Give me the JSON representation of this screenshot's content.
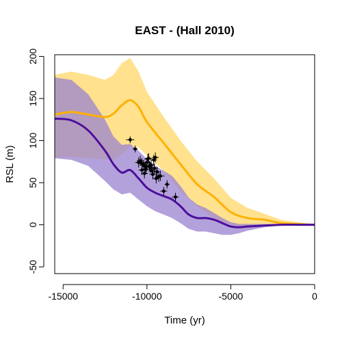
{
  "chart_data": {
    "type": "area",
    "title": "EAST - (Hall 2010)",
    "xlabel": "Time (yr)",
    "ylabel": "RSL (m)",
    "xlim": [
      -15500,
      0
    ],
    "ylim": [
      -58,
      202
    ],
    "xticks": [
      -15000,
      -10000,
      -5000,
      0
    ],
    "xtick_labels": [
      "-15000",
      "-10000",
      "-5000",
      "0"
    ],
    "yticks": [
      -50,
      0,
      50,
      100,
      150,
      200
    ],
    "ytick_labels": [
      "-50",
      "0",
      "50",
      "100",
      "150",
      "200"
    ],
    "grid": false,
    "legend": "none",
    "series": [
      {
        "color": "#ffb000",
        "band_color": "#ffdf88",
        "x": [
          -15500,
          -14500,
          -13500,
          -12500,
          -12000,
          -11500,
          -11000,
          -10500,
          -10000,
          -9000,
          -8000,
          -7000,
          -6000,
          -5000,
          -4000,
          -3000,
          -2000,
          -1000,
          0
        ],
        "mean": [
          131,
          134,
          131,
          128,
          132,
          142,
          148,
          140,
          122,
          97,
          72,
          48,
          33,
          15,
          8,
          6,
          2,
          1,
          0
        ],
        "upper": [
          178,
          182,
          178,
          172,
          178,
          192,
          198,
          182,
          158,
          128,
          100,
          75,
          55,
          32,
          20,
          13,
          6,
          3,
          0
        ],
        "lower": [
          80,
          81,
          79,
          78,
          77,
          84,
          93,
          92,
          82,
          64,
          40,
          22,
          8,
          0,
          -3,
          -2,
          -1,
          0,
          0
        ]
      },
      {
        "color": "#4b0e9b",
        "band_color": "#9a82cf",
        "x": [
          -15500,
          -14500,
          -13500,
          -12500,
          -12000,
          -11500,
          -11000,
          -10500,
          -10000,
          -9500,
          -9000,
          -8500,
          -8000,
          -7500,
          -7000,
          -6500,
          -6000,
          -5500,
          -5000,
          -4500,
          -4000,
          -3000,
          -2000,
          -1000,
          0
        ],
        "mean": [
          126,
          124,
          112,
          88,
          72,
          62,
          65,
          55,
          44,
          38,
          34,
          30,
          22,
          12,
          8,
          8,
          6,
          2,
          -2,
          -3,
          -2,
          -1,
          0,
          0,
          0
        ],
        "upper": [
          175,
          172,
          155,
          125,
          105,
          95,
          96,
          88,
          78,
          70,
          64,
          58,
          46,
          32,
          24,
          20,
          14,
          8,
          3,
          1,
          1,
          1,
          1,
          0,
          0
        ],
        "lower": [
          79,
          77,
          70,
          52,
          42,
          36,
          38,
          30,
          22,
          16,
          12,
          8,
          2,
          -5,
          -8,
          -8,
          -10,
          -12,
          -12,
          -10,
          -7,
          -3,
          -1,
          0,
          0
        ]
      }
    ],
    "points": {
      "color": "#000000",
      "x": [
        -11000,
        -10700,
        -10400,
        -10300,
        -10200,
        -10100,
        -10000,
        -9900,
        -9850,
        -9800,
        -9700,
        -9600,
        -9500,
        -9400,
        -9300,
        -9200,
        -9000,
        -8800,
        -8300,
        -10500,
        -10300,
        -10150,
        -10050,
        -9950,
        -9750,
        -9650,
        -9450,
        -9550
      ],
      "y": [
        101,
        90,
        76,
        73,
        71,
        69,
        74,
        79,
        70,
        68,
        64,
        77,
        80,
        63,
        57,
        58,
        40,
        48,
        33,
        74,
        65,
        61,
        66,
        78,
        71,
        60,
        55,
        67
      ],
      "xerr": [
        250,
        150,
        200,
        200,
        200,
        200,
        250,
        200,
        200,
        200,
        200,
        200,
        200,
        200,
        200,
        250,
        200,
        150,
        200,
        200,
        200,
        200,
        200,
        200,
        200,
        200,
        200,
        200
      ],
      "yerr": [
        4,
        4,
        6,
        6,
        6,
        6,
        6,
        6,
        6,
        6,
        6,
        6,
        6,
        6,
        6,
        6,
        5,
        5,
        5,
        6,
        6,
        6,
        6,
        6,
        6,
        6,
        6,
        6
      ]
    }
  }
}
